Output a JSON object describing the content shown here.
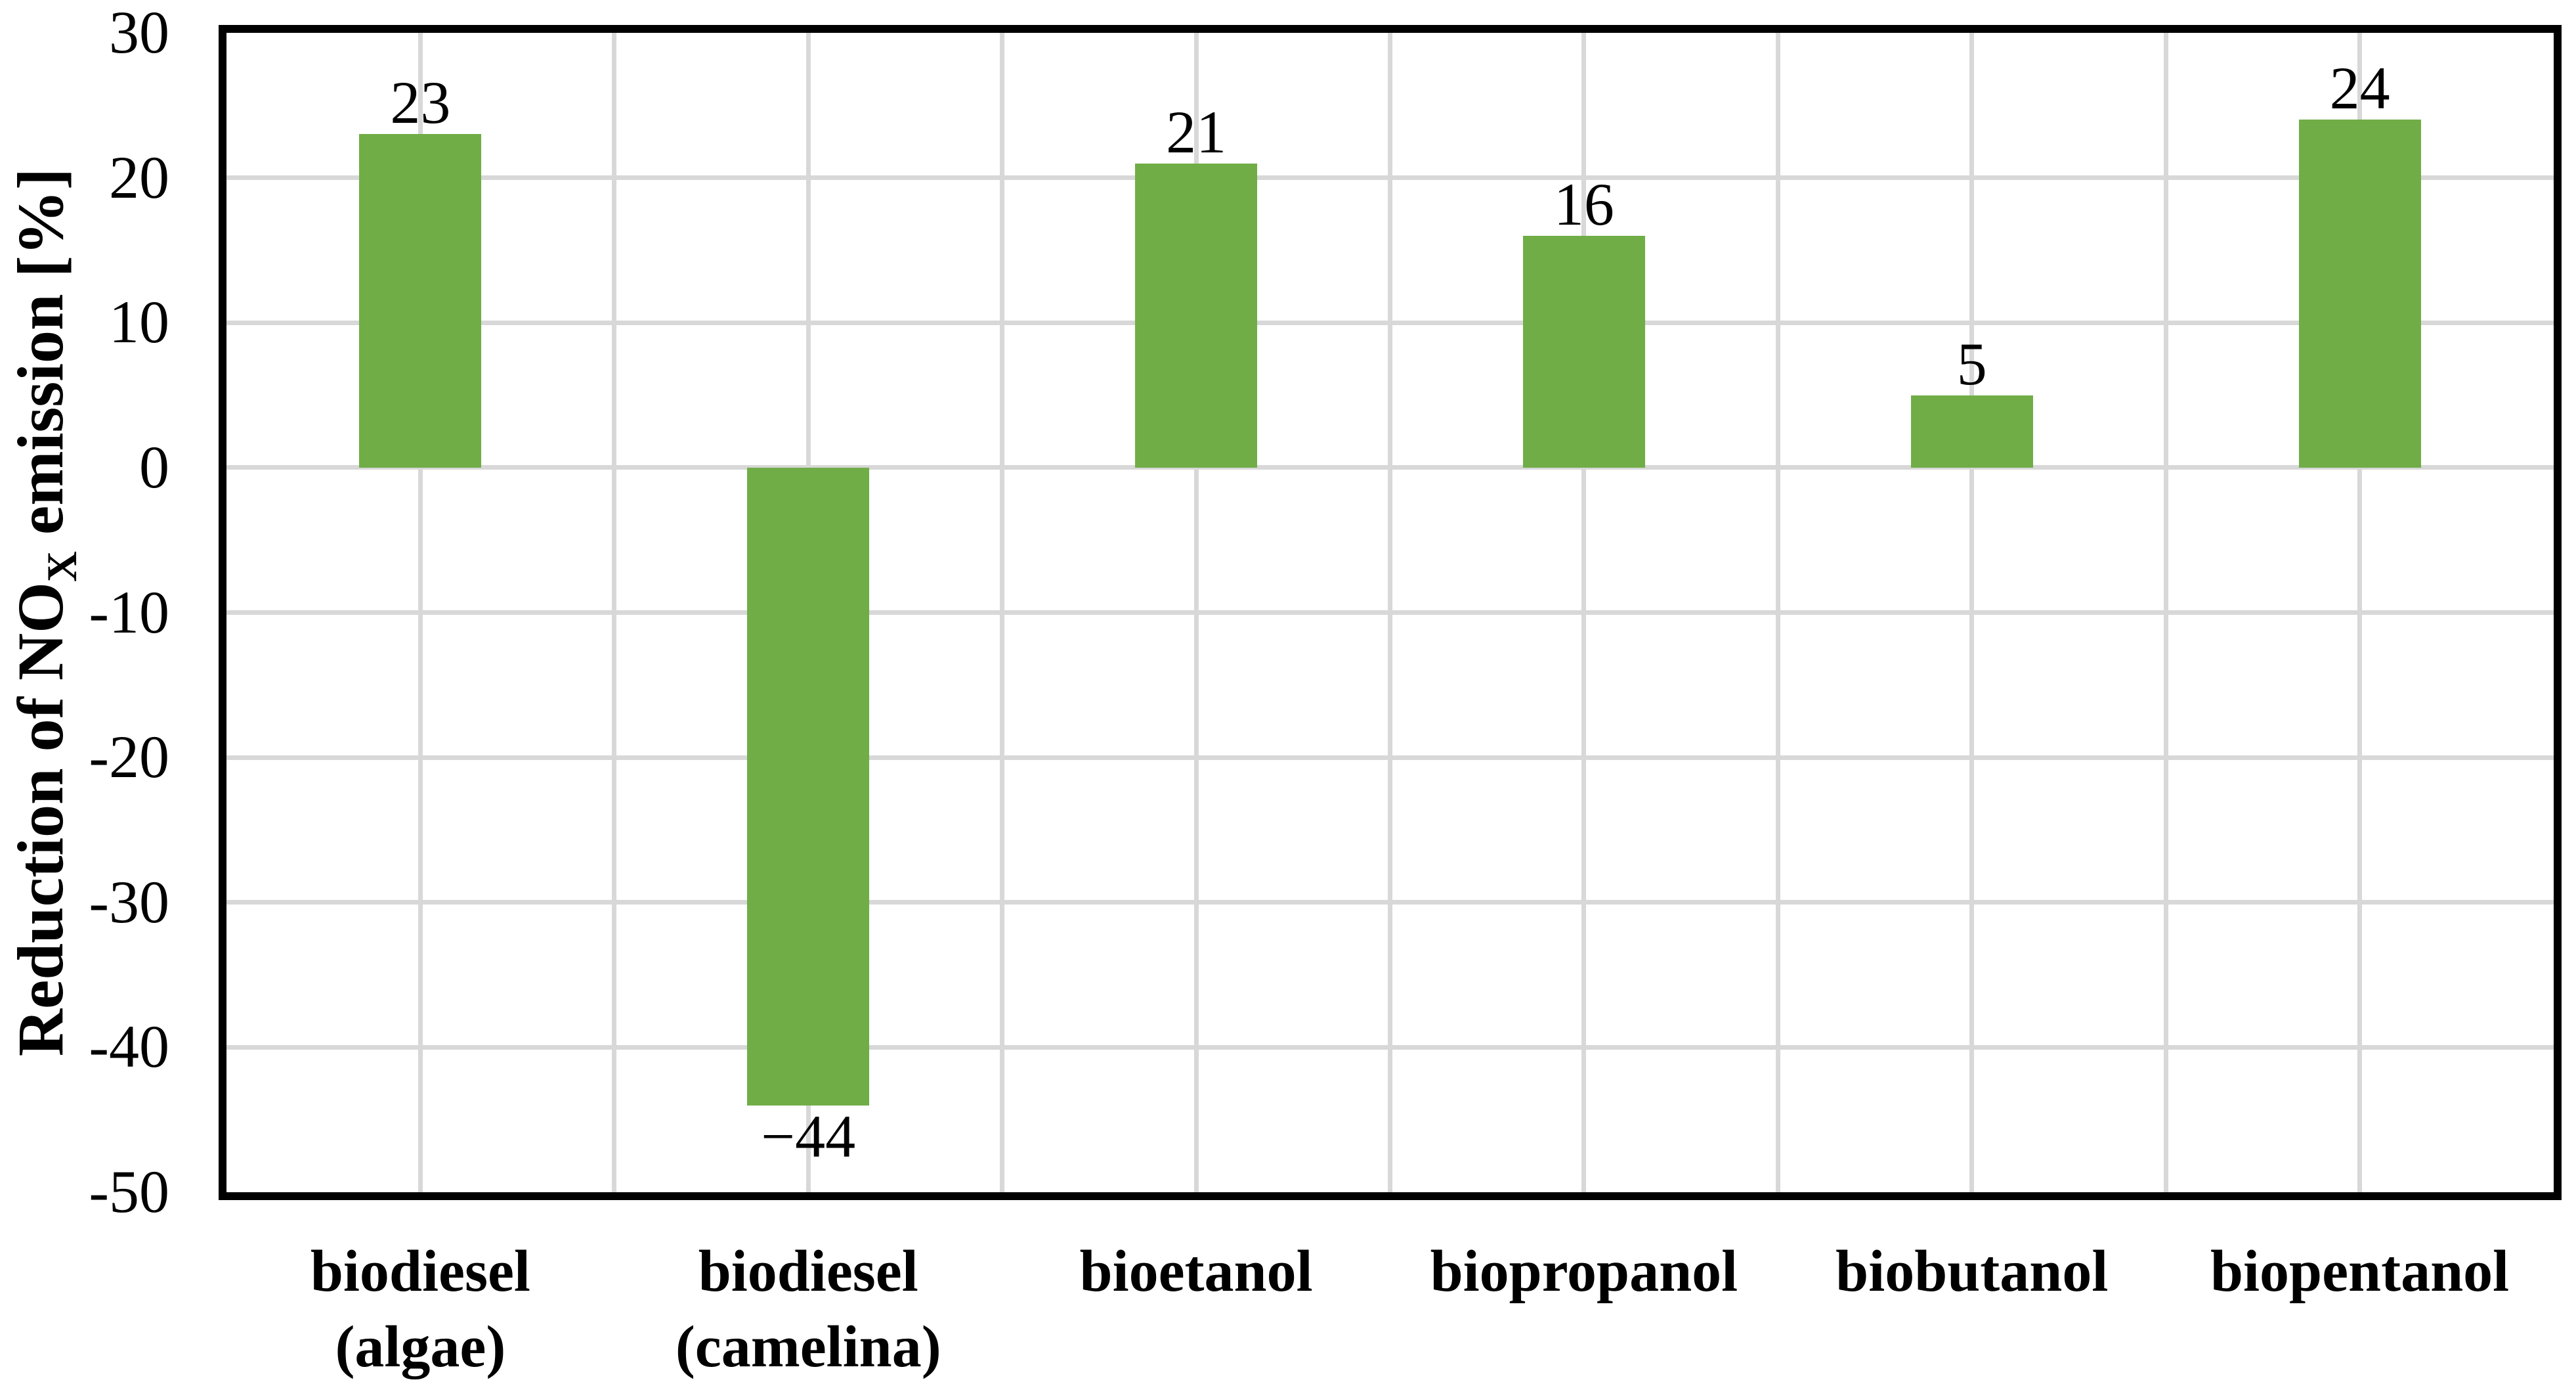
{
  "figure": {
    "background_color": "#FFFFFF",
    "text_color": "#000000"
  },
  "chart_data": {
    "type": "bar",
    "title": "",
    "ylabel_prefix": "Reduction of NO",
    "ylabel_sub": "X",
    "ylabel_suffix": " emission [%]",
    "categories": [
      "biodiesel\n(algae)",
      "biodiesel\n(camelina)",
      "bioetanol",
      "biopropanol",
      "biobutanol",
      "biopentanol"
    ],
    "values": [
      23,
      -44,
      21,
      16,
      5,
      24
    ],
    "data_labels": [
      "23",
      "−44",
      "21",
      "16",
      "5",
      "24"
    ],
    "ylim": [
      -50,
      30
    ],
    "ytick_interval": 10,
    "yticks": [
      30,
      20,
      10,
      0,
      -10,
      -20,
      -30,
      -40,
      -50
    ],
    "ytick_labels": [
      "30",
      "20",
      "10",
      "0",
      "-10",
      "-20",
      "-30",
      "-40",
      "-50"
    ],
    "grid": true,
    "vertical_gridlines_per_category": 2,
    "legend_position": "none",
    "bar_color": "#70AD47",
    "gridline_color": "#D8D8D8",
    "plot_border_color": "#000000"
  }
}
